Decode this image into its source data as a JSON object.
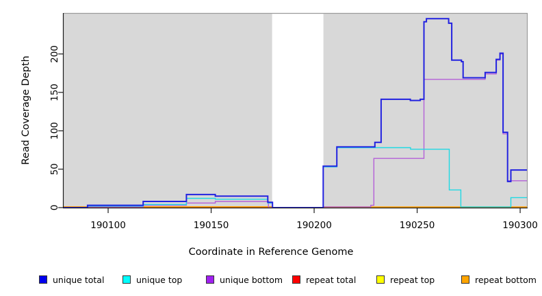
{
  "chart_data": {
    "type": "line",
    "title": "",
    "xlabel": "Coordinate in Reference Genome",
    "ylabel": "Read Coverage Depth",
    "xlim": [
      190078.4,
      190303.3
    ],
    "ylim": [
      0,
      253.3
    ],
    "grid": false,
    "x_ticks": {
      "values": [
        190100,
        190150,
        190200,
        190250,
        190300
      ],
      "labels": [
        "190100",
        "190150",
        "190200",
        "190250",
        "190300"
      ]
    },
    "y_ticks": {
      "values": [
        0,
        50,
        100,
        150,
        200
      ],
      "labels": [
        "0",
        "50",
        "100",
        "150",
        "200"
      ]
    },
    "panel_color": "#d8d8d8",
    "box_color": "#9a9a9a",
    "axis_color": "#1a1a1a",
    "gap_region": {
      "x_start": 190179.6,
      "x_end": 190204.5
    },
    "series": [
      {
        "name": "repeat top",
        "color": "#ffff00",
        "width": 1.4,
        "points": [
          [
            190078.4,
            0
          ],
          [
            190303.3,
            0
          ]
        ]
      },
      {
        "name": "repeat total",
        "color": "#e02020",
        "width": 1.4,
        "points": [
          [
            190078.4,
            0
          ],
          [
            190303.3,
            0
          ]
        ]
      },
      {
        "name": "repeat bottom",
        "color": "#ff9f00",
        "width": 1.8,
        "points": [
          [
            190078.4,
            1
          ],
          [
            190179.6,
            1
          ],
          [
            190179.6,
            0
          ],
          [
            190204.5,
            0
          ],
          [
            190204.5,
            0.7
          ],
          [
            190303.3,
            0.7
          ]
        ]
      },
      {
        "name": "unique bottom",
        "color": "#b45fd8",
        "width": 1.4,
        "points": [
          [
            190078.4,
            0
          ],
          [
            190090,
            0
          ],
          [
            190090,
            1
          ],
          [
            190117,
            1
          ],
          [
            190117,
            3
          ],
          [
            190138,
            3
          ],
          [
            190138,
            6
          ],
          [
            190152,
            6
          ],
          [
            190152,
            8
          ],
          [
            190177.8,
            8
          ],
          [
            190177.8,
            0
          ],
          [
            190204.4,
            0
          ],
          [
            190204.4,
            1
          ],
          [
            190227.5,
            1
          ],
          [
            190227.5,
            3
          ],
          [
            190229,
            3
          ],
          [
            190229,
            64
          ],
          [
            190253.3,
            64
          ],
          [
            190253.3,
            167
          ],
          [
            190283,
            167
          ],
          [
            190283,
            174
          ],
          [
            190288.4,
            174
          ],
          [
            190288.4,
            192
          ],
          [
            190290.2,
            192
          ],
          [
            190290.2,
            200
          ],
          [
            190291.7,
            200
          ],
          [
            190291.7,
            96
          ],
          [
            190293.9,
            96
          ],
          [
            190293.9,
            35
          ],
          [
            190303.3,
            35
          ]
        ]
      },
      {
        "name": "unique top",
        "color": "#1fd9e3",
        "width": 1.4,
        "points": [
          [
            190078.4,
            0
          ],
          [
            190090,
            0
          ],
          [
            190090,
            2
          ],
          [
            190117,
            2
          ],
          [
            190117,
            4
          ],
          [
            190138,
            4
          ],
          [
            190138,
            12
          ],
          [
            190152,
            12
          ],
          [
            190152,
            11
          ],
          [
            190177.5,
            11
          ],
          [
            190177.5,
            6
          ],
          [
            190179.8,
            6
          ],
          [
            190179.8,
            0
          ],
          [
            190204.4,
            0
          ],
          [
            190204.4,
            53
          ],
          [
            190211,
            53
          ],
          [
            190211,
            78
          ],
          [
            190246.8,
            78
          ],
          [
            190246.8,
            76
          ],
          [
            190265.6,
            76
          ],
          [
            190265.6,
            23
          ],
          [
            190271.2,
            23
          ],
          [
            190271.2,
            1
          ],
          [
            190295.5,
            1
          ],
          [
            190295.5,
            13
          ],
          [
            190303.3,
            13
          ]
        ]
      },
      {
        "name": "unique total",
        "color": "#2222e0",
        "width": 2,
        "points": [
          [
            190078.4,
            0
          ],
          [
            190090,
            0
          ],
          [
            190090,
            3
          ],
          [
            190117,
            3
          ],
          [
            190117,
            8
          ],
          [
            190138,
            8
          ],
          [
            190138,
            17
          ],
          [
            190152,
            17
          ],
          [
            190152,
            15
          ],
          [
            190177.5,
            15
          ],
          [
            190177.5,
            7
          ],
          [
            190179.8,
            7
          ],
          [
            190179.8,
            0
          ],
          [
            190204.4,
            0
          ],
          [
            190204.4,
            54
          ],
          [
            190211,
            54
          ],
          [
            190211,
            79
          ],
          [
            190229.5,
            79
          ],
          [
            190229.5,
            85
          ],
          [
            190232.5,
            85
          ],
          [
            190232.5,
            141
          ],
          [
            190246.7,
            141
          ],
          [
            190246.7,
            139.5
          ],
          [
            190251.5,
            139.5
          ],
          [
            190251.5,
            141
          ],
          [
            190253.3,
            141
          ],
          [
            190253.3,
            242
          ],
          [
            190254.5,
            242
          ],
          [
            190254.5,
            246
          ],
          [
            190265.3,
            246
          ],
          [
            190265.3,
            240
          ],
          [
            190266.8,
            240
          ],
          [
            190266.8,
            192
          ],
          [
            190271.5,
            192
          ],
          [
            190271.5,
            190
          ],
          [
            190272.3,
            190
          ],
          [
            190272.3,
            169
          ],
          [
            190283,
            169
          ],
          [
            190283,
            176
          ],
          [
            190288.4,
            176
          ],
          [
            190288.4,
            193
          ],
          [
            190290.2,
            193
          ],
          [
            190290.2,
            201
          ],
          [
            190291.7,
            201
          ],
          [
            190291.7,
            98
          ],
          [
            190293.9,
            98
          ],
          [
            190293.9,
            34
          ],
          [
            190295.5,
            34
          ],
          [
            190295.5,
            49
          ],
          [
            190303.3,
            49
          ]
        ]
      }
    ]
  },
  "legend": {
    "items": [
      {
        "label": "unique total",
        "color": "#0000ee"
      },
      {
        "label": "unique top",
        "color": "#00ffff"
      },
      {
        "label": "unique bottom",
        "color": "#a020f0"
      },
      {
        "label": "repeat total",
        "color": "#ff0000"
      },
      {
        "label": "repeat top",
        "color": "#ffff00"
      },
      {
        "label": "repeat bottom",
        "color": "#ffa500"
      }
    ]
  }
}
